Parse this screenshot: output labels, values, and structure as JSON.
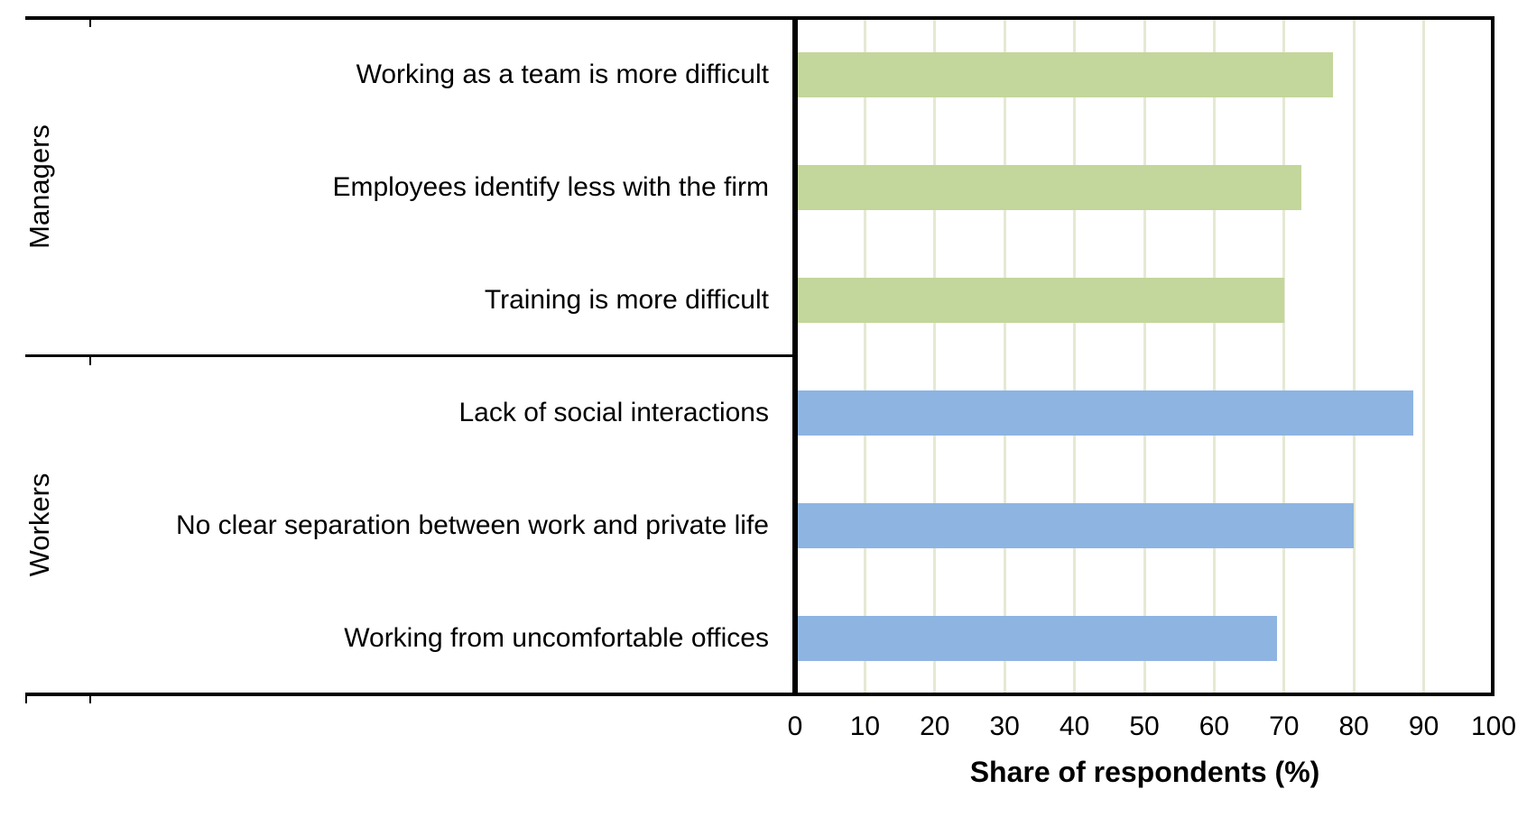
{
  "chart_data": {
    "type": "bar",
    "orientation": "horizontal",
    "title": "",
    "xlabel": "Share of respondents (%)",
    "ylabel": "",
    "xlim": [
      0,
      100
    ],
    "x_ticks": [
      0,
      10,
      20,
      30,
      40,
      50,
      60,
      70,
      80,
      90,
      100
    ],
    "grid": "vertical gridlines on",
    "legend_position": "none",
    "gridline_color": "#e6e9d3",
    "axis_line_color": "#000000",
    "groups": [
      {
        "name": "Managers",
        "color": "#c3d69b",
        "items": [
          {
            "label": "Working as a team is more difficult",
            "value": 77
          },
          {
            "label": "Employees identify less with the firm",
            "value": 72.5
          },
          {
            "label": "Training is more difficult",
            "value": 70
          }
        ]
      },
      {
        "name": "Workers",
        "color": "#8eb4e2",
        "items": [
          {
            "label": "Lack of social interactions",
            "value": 88.5
          },
          {
            "label": "No clear separation between work and private life",
            "value": 80
          },
          {
            "label": "Working from uncomfortable offices",
            "value": 69
          }
        ]
      }
    ]
  }
}
